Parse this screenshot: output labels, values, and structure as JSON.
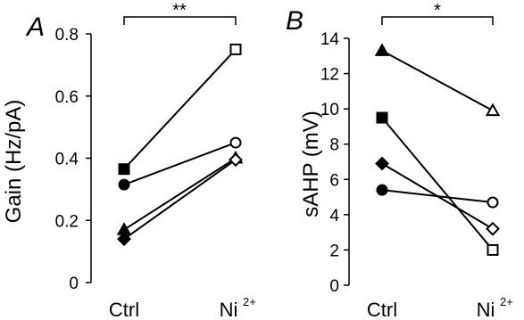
{
  "chart_data": [
    {
      "type": "line",
      "panel_label": "A",
      "ylabel": "Gain (Hz/pA)",
      "categories": [
        "Ctrl",
        "Ni"
      ],
      "category_superscripts": [
        "",
        "2+"
      ],
      "ylim": [
        0,
        0.8
      ],
      "yticks": [
        0,
        0.2,
        0.4,
        0.6,
        0.8
      ],
      "ytick_labels": [
        "0",
        "0.2",
        "0.4",
        "0.6",
        "0.8"
      ],
      "significance": "**",
      "series": [
        {
          "marker": "square",
          "values": [
            0.365,
            0.75
          ]
        },
        {
          "marker": "circle",
          "values": [
            0.315,
            0.45
          ]
        },
        {
          "marker": "triangle",
          "values": [
            0.17,
            0.4
          ]
        },
        {
          "marker": "diamond",
          "values": [
            0.14,
            0.395
          ]
        }
      ]
    },
    {
      "type": "line",
      "panel_label": "B",
      "ylabel": "sAHP (mV)",
      "categories": [
        "Ctrl",
        "Ni"
      ],
      "category_superscripts": [
        "",
        "2+"
      ],
      "ylim": [
        0,
        14
      ],
      "yticks": [
        0,
        2,
        4,
        6,
        8,
        10,
        12,
        14
      ],
      "ytick_labels": [
        "0",
        "2",
        "4",
        "6",
        "8",
        "10",
        "12",
        "14"
      ],
      "significance": "*",
      "series": [
        {
          "marker": "triangle",
          "values": [
            13.3,
            9.9
          ]
        },
        {
          "marker": "square",
          "values": [
            9.5,
            2.0
          ]
        },
        {
          "marker": "diamond",
          "values": [
            6.9,
            3.2
          ]
        },
        {
          "marker": "circle",
          "values": [
            5.4,
            4.7
          ]
        }
      ]
    }
  ]
}
